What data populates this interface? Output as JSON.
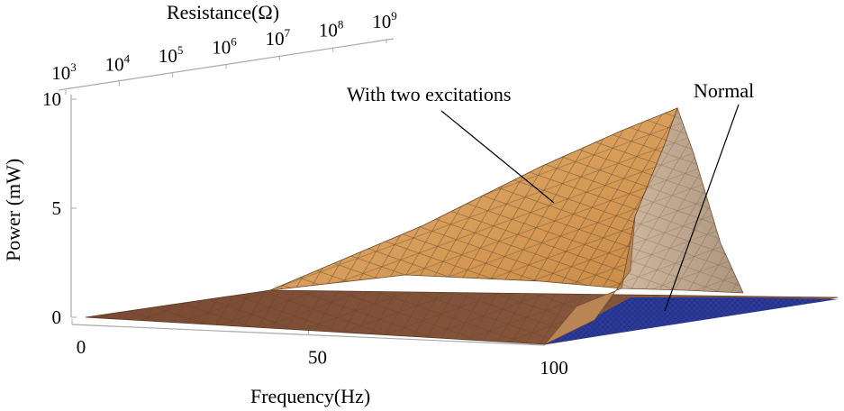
{
  "chart_data": {
    "type": "surface3d",
    "title": "",
    "xlabel": "Frequency(Hz)",
    "ylabel": "Power (mW)",
    "zlabel": "Resistance(Ω)",
    "x_ticks": [
      "0",
      "50",
      "100"
    ],
    "x_range": [
      0,
      100
    ],
    "y_ticks": [
      "0",
      "5",
      "10"
    ],
    "y_range": [
      0,
      10
    ],
    "resistance_ticks": [
      {
        "base": "10",
        "exp": "3"
      },
      {
        "base": "10",
        "exp": "4"
      },
      {
        "base": "10",
        "exp": "5"
      },
      {
        "base": "10",
        "exp": "6"
      },
      {
        "base": "10",
        "exp": "7"
      },
      {
        "base": "10",
        "exp": "8"
      },
      {
        "base": "10",
        "exp": "9"
      }
    ],
    "resistance_log_range": [
      3,
      9
    ],
    "series": [
      {
        "name": "With two excitations",
        "peak_power_mW": 9.5,
        "peak_frequency_Hz": 100,
        "peak_log_resistance": 7.3,
        "color": "#d9a868"
      },
      {
        "name": "Normal",
        "peak_power_mW": 0.3,
        "peak_frequency_Hz": 100,
        "peak_log_resistance": 7.3,
        "color": "#2c3a9a"
      }
    ],
    "annotations": [
      {
        "text": "With two excitations",
        "target": "With two excitations"
      },
      {
        "text": "Normal",
        "target": "Normal"
      }
    ]
  }
}
